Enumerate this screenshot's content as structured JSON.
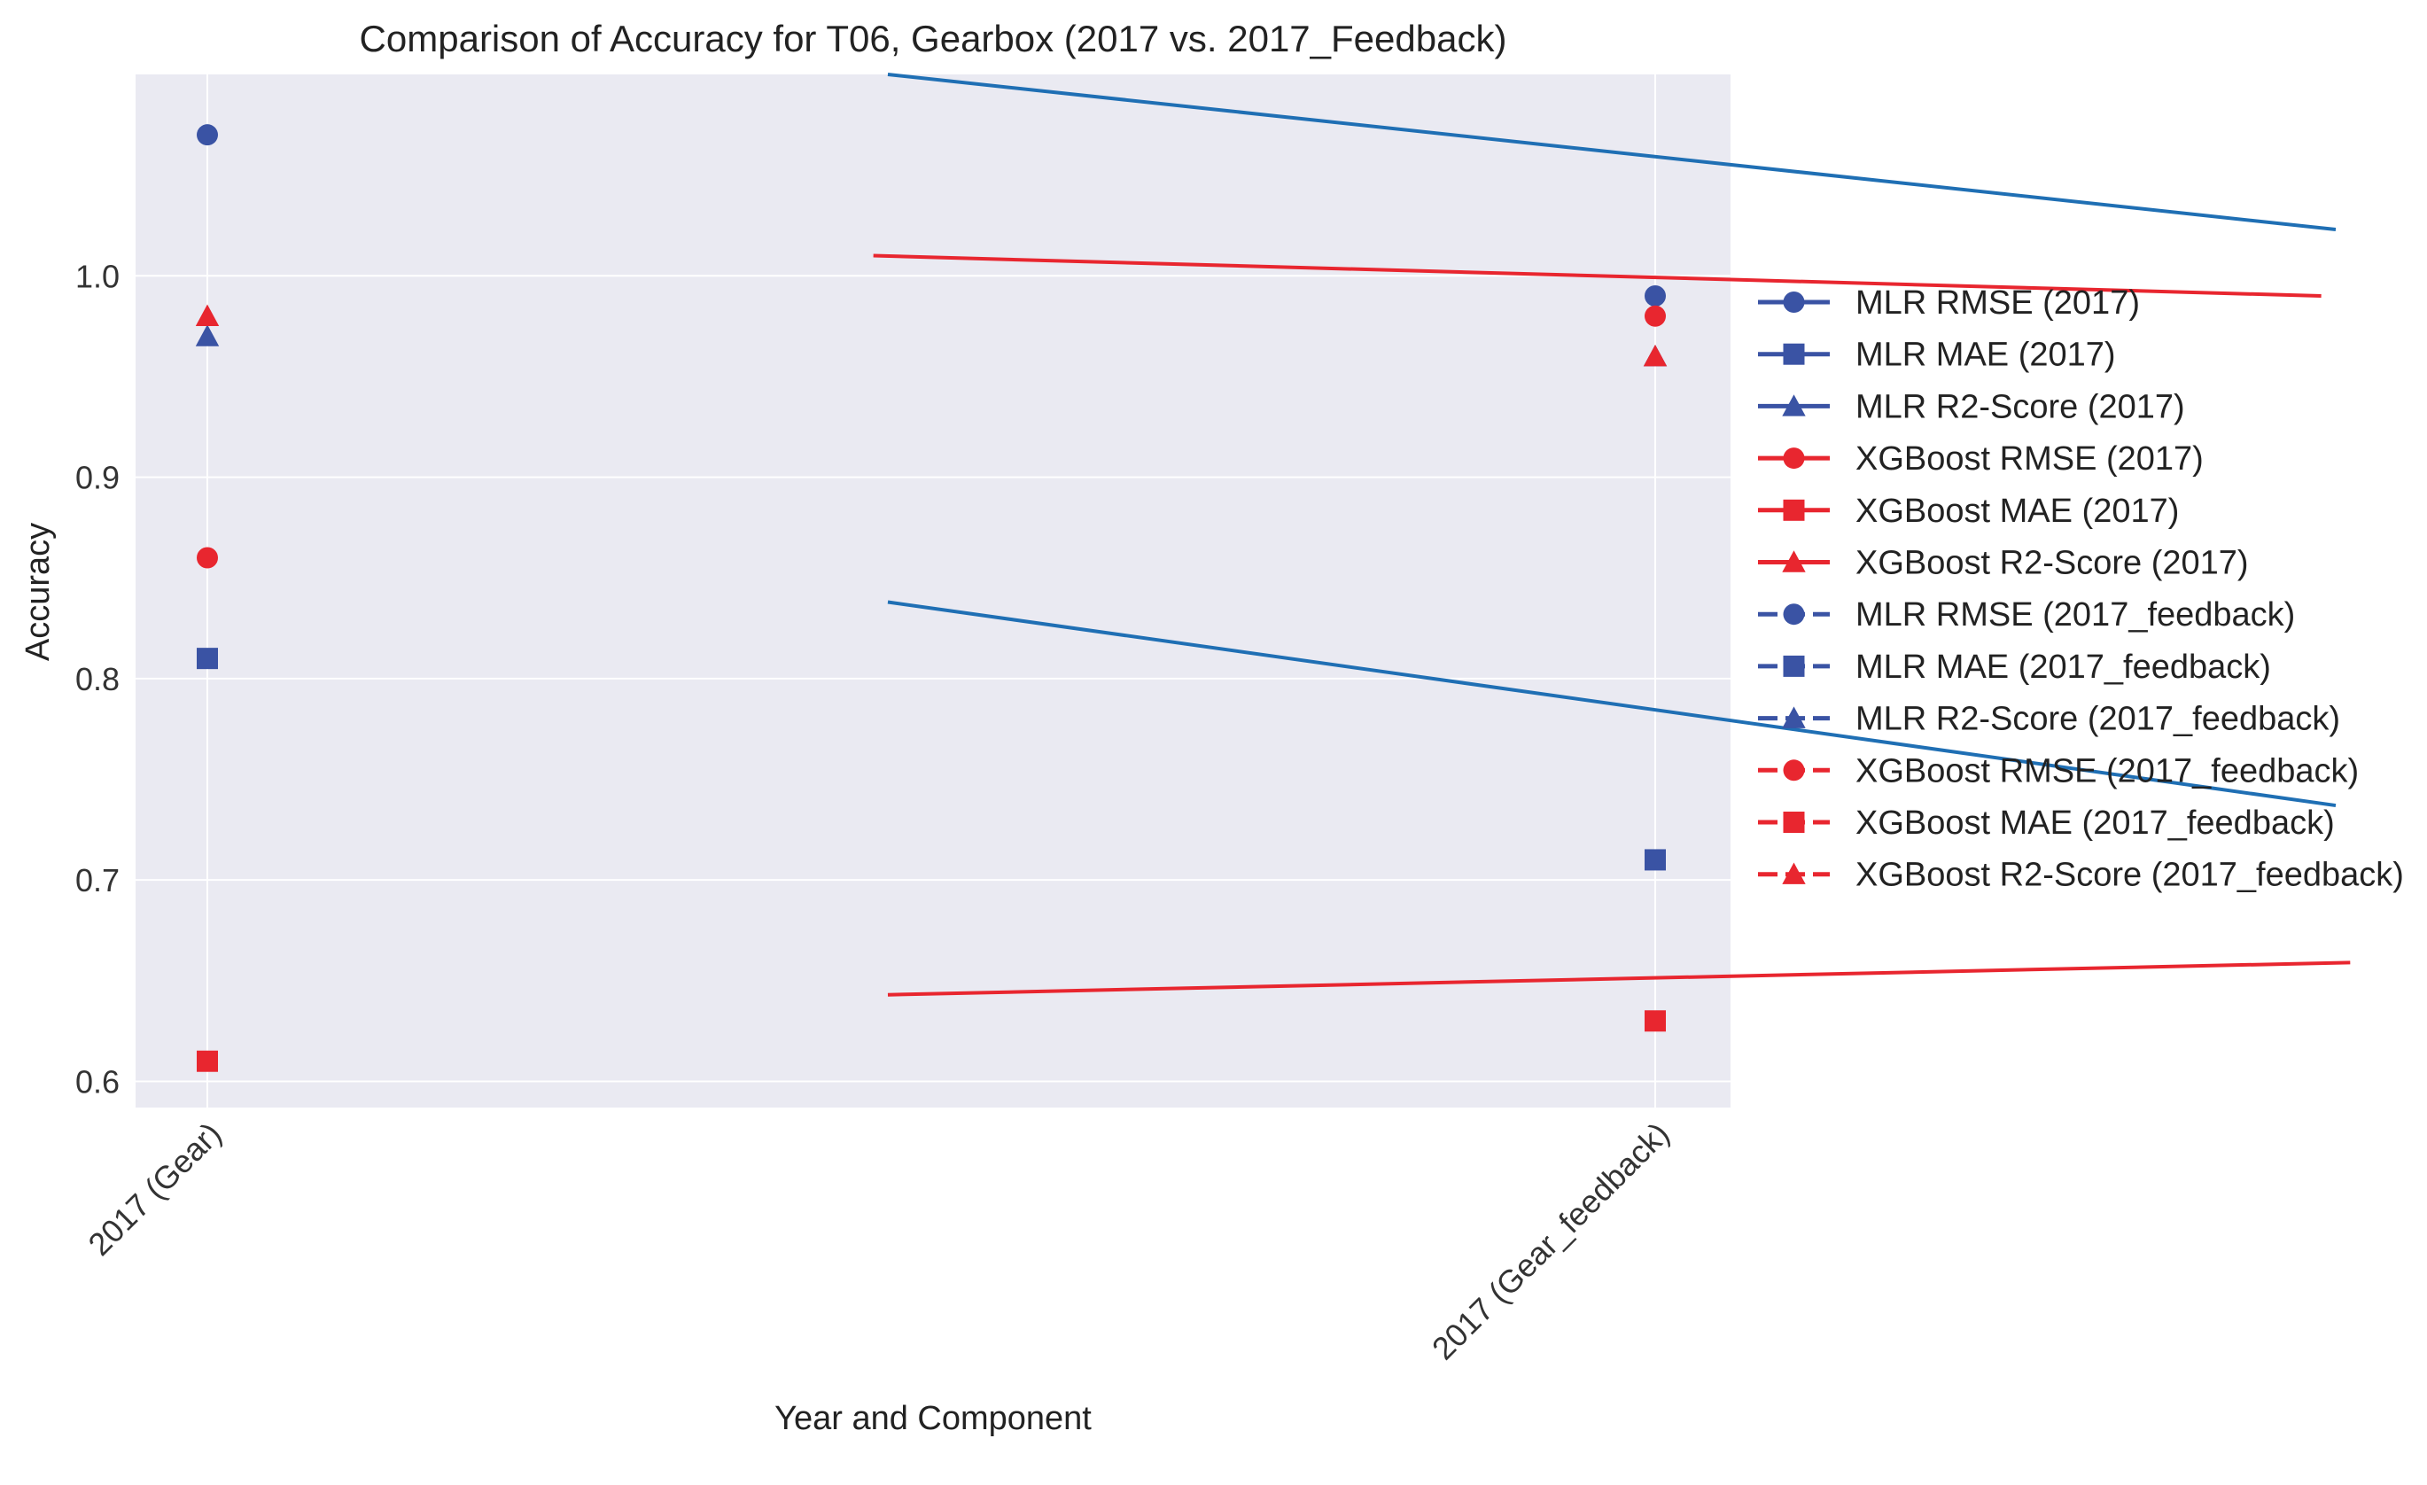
{
  "chart_data": {
    "type": "scatter",
    "title": "Comparison of Accuracy for T06, Gearbox (2017 vs. 2017_Feedback)",
    "xlabel": "Year and Component",
    "ylabel": "Accuracy",
    "categories": [
      "2017 (Gear)",
      "2017 (Gear_feedback)"
    ],
    "ylim": [
      0.587,
      1.1
    ],
    "yticks": [
      0.6,
      0.7,
      0.8,
      0.9,
      1.0
    ],
    "ytick_labels": [
      "0.6",
      "0.7",
      "0.8",
      "0.9",
      "1.0"
    ],
    "grid": true,
    "legend_position": "right, outside plot area",
    "colors": {
      "mlr": "#3a53a4",
      "xgb": "#e8262f",
      "line": "#1f6fb4",
      "plot_bg": "#eaeaf2",
      "grid": "#ffffff"
    },
    "series": [
      {
        "name": "MLR RMSE (2017)",
        "model": "mlr",
        "marker": "circle",
        "dash": false,
        "values": [
          1.07,
          null
        ]
      },
      {
        "name": "MLR MAE (2017)",
        "model": "mlr",
        "marker": "square",
        "dash": false,
        "values": [
          0.81,
          null
        ]
      },
      {
        "name": "MLR R2-Score (2017)",
        "model": "mlr",
        "marker": "triangle",
        "dash": false,
        "values": [
          0.97,
          null
        ]
      },
      {
        "name": "XGBoost RMSE (2017)",
        "model": "xgb",
        "marker": "circle",
        "dash": false,
        "values": [
          0.86,
          null
        ]
      },
      {
        "name": "XGBoost MAE (2017)",
        "model": "xgb",
        "marker": "square",
        "dash": false,
        "values": [
          0.61,
          null
        ]
      },
      {
        "name": "XGBoost R2-Score (2017)",
        "model": "xgb",
        "marker": "triangle",
        "dash": false,
        "values": [
          0.98,
          null
        ]
      },
      {
        "name": "MLR RMSE (2017_feedback)",
        "model": "mlr",
        "marker": "circle",
        "dash": true,
        "values": [
          null,
          0.99
        ]
      },
      {
        "name": "MLR MAE (2017_feedback)",
        "model": "mlr",
        "marker": "square",
        "dash": true,
        "values": [
          null,
          0.71
        ]
      },
      {
        "name": "MLR R2-Score (2017_feedback)",
        "model": "mlr",
        "marker": "triangle",
        "dash": true,
        "values": [
          null,
          0.96
        ]
      },
      {
        "name": "XGBoost RMSE (2017_feedback)",
        "model": "xgb",
        "marker": "circle",
        "dash": true,
        "values": [
          null,
          0.98
        ]
      },
      {
        "name": "XGBoost MAE (2017_feedback)",
        "model": "xgb",
        "marker": "square",
        "dash": true,
        "values": [
          null,
          0.63
        ]
      },
      {
        "name": "XGBoost R2-Score (2017_feedback)",
        "model": "xgb",
        "marker": "triangle",
        "dash": true,
        "values": [
          null,
          0.96
        ]
      }
    ],
    "overlay_lines": [
      {
        "color": "line",
        "x": [
          0.47,
          1.47
        ],
        "y": [
          1.1,
          1.023
        ]
      },
      {
        "color": "xgb",
        "x": [
          0.46,
          1.46
        ],
        "y": [
          1.01,
          0.99
        ]
      },
      {
        "color": "line",
        "x": [
          0.47,
          1.47
        ],
        "y": [
          0.838,
          0.737
        ]
      },
      {
        "color": "xgb",
        "x": [
          0.47,
          1.48
        ],
        "y": [
          0.643,
          0.659
        ]
      }
    ]
  }
}
